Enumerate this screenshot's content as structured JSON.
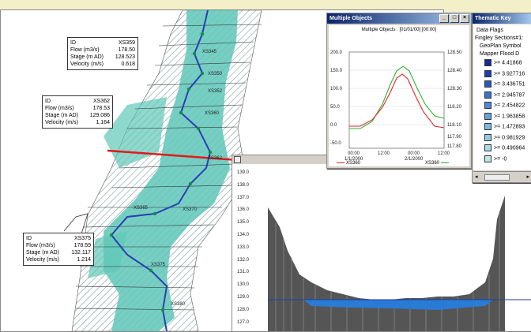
{
  "map": {
    "boxes": [
      {
        "id_label": "ID",
        "id": "XS359",
        "flow_label": "Flow (m3/s)",
        "flow": "178.50",
        "stage_label": "Stage (m AD)",
        "stage": "128.523",
        "vel_label": "Velocity (m/s)",
        "vel": "0.618"
      },
      {
        "id_label": "ID",
        "id": "XS362",
        "flow_label": "Flow (m3/s)",
        "flow": "178.53",
        "stage_label": "Stage (m AD)",
        "stage": "129.086",
        "vel_label": "Velocity (m/s)",
        "vel": "1.164"
      },
      {
        "id_label": "ID",
        "id": "XS375",
        "flow_label": "Flow (m3/s)",
        "flow": "178.59",
        "stage_label": "Stage (m AD)",
        "stage": "132.117",
        "vel_label": "Velocity (m/s)",
        "vel": "1.214"
      }
    ],
    "xs_labels": [
      "XS345",
      "XS350",
      "XS352",
      "XS360",
      "XS362",
      "XS370",
      "XS365",
      "XS375",
      "XS380"
    ]
  },
  "profile": {
    "y_ticks": [
      "139.0",
      "138.0",
      "137.0",
      "136.0",
      "135.0",
      "134.0",
      "133.0",
      "132.0",
      "131.0",
      "130.0",
      "129.0",
      "128.0",
      "127.0"
    ],
    "water_level": "128.2"
  },
  "multi": {
    "title": "Multiple Objects",
    "chart_title": "Multiple Objects : [01/01/00] [00:00]",
    "flow_ticks": [
      "200.0",
      "150.0",
      "100.0",
      "50.0",
      "0.0",
      "-50.0"
    ],
    "stage_ticks": [
      "128.50",
      "128.40",
      "128.30",
      "118.20",
      "118.10",
      "117.90",
      "117.80"
    ],
    "x_ticks": [
      "00:00",
      "12:00",
      "00:00",
      "12:00"
    ],
    "x_dates": [
      "1/1/2000",
      "2/1/2000"
    ],
    "y_label_left": "Flow (m3/s)",
    "y_label_right": "Stage (m AD)",
    "legend": [
      "XS360",
      "XS360"
    ]
  },
  "key": {
    "title": "Thematic Key",
    "items": [
      "Data Flags",
      "Fingley Sections#1:",
      "GeoPlan Symbol",
      "Mapper Flood D"
    ],
    "ranges": [
      ">= 4.41868",
      ">= 3.927716",
      ">= 3.436751",
      ">= 2.945787",
      ">= 2.454822",
      ">= 1.963858",
      ">= 1.472893",
      ">= 0.981929",
      ">= 0.490964",
      ">= -0"
    ],
    "colors": [
      "#1a2a9a",
      "#1e3db0",
      "#2a56c4",
      "#3a72cf",
      "#4d8ad8",
      "#63a2de",
      "#79b9e3",
      "#8fcde6",
      "#a6dde8",
      "#bfe9e6"
    ]
  }
}
